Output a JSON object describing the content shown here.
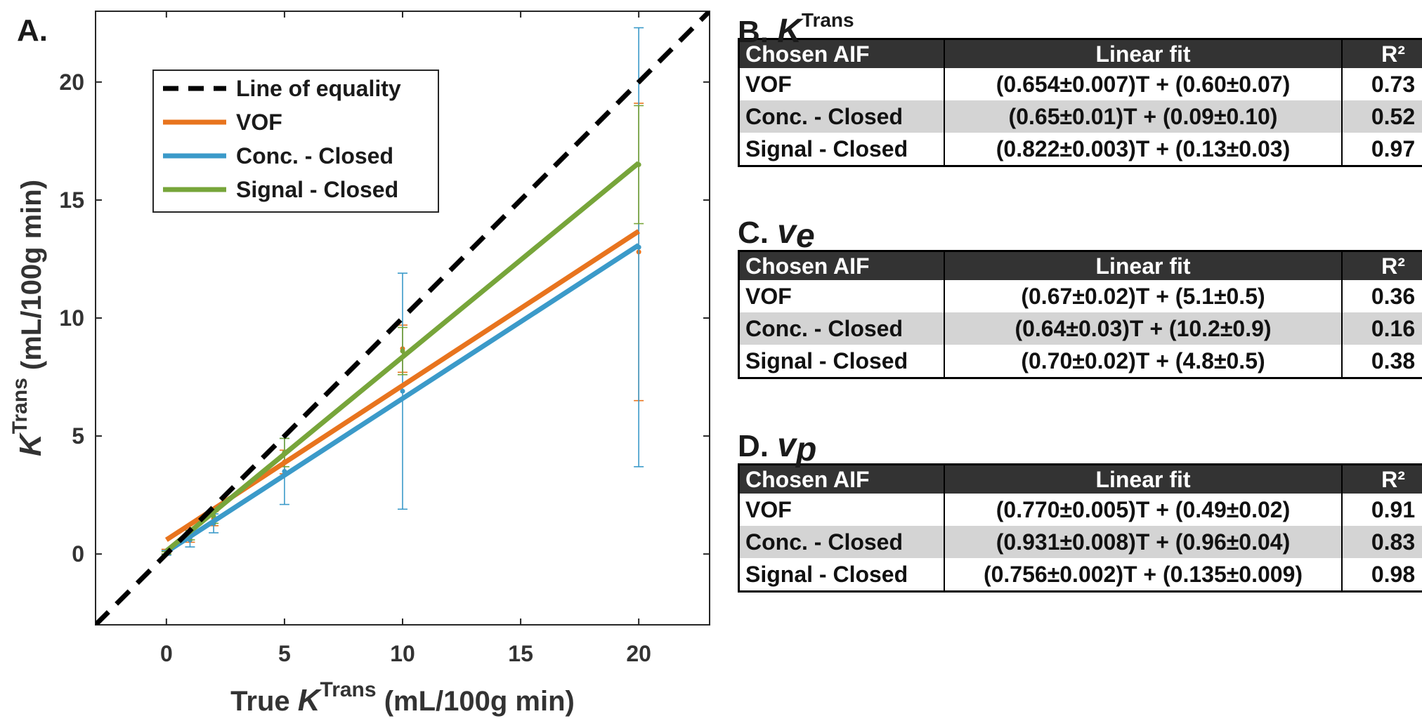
{
  "panel_a": {
    "label": "A."
  },
  "chart_data": {
    "type": "line",
    "panel": "A.",
    "xlabel": "True K^Trans (mL/100g min)",
    "ylabel": "K^Trans (mL/100g min)",
    "xlabel_parts": {
      "pre": "True ",
      "sym": "K",
      "sup": "Trans",
      "post": " (mL/100g min)"
    },
    "ylabel_parts": {
      "sym": "K",
      "sup": "Trans",
      "post": " (mL/100g min)"
    },
    "xlim": [
      -3,
      23
    ],
    "ylim": [
      -3,
      23
    ],
    "xticks": [
      0,
      5,
      10,
      15,
      20
    ],
    "yticks": [
      0,
      5,
      10,
      15,
      20
    ],
    "grid": false,
    "legend_position": "top-left",
    "reference_line": {
      "name": "Line of equality",
      "style": "dashed",
      "color": "#000000"
    },
    "series": [
      {
        "name": "VOF",
        "color": "#e8741e",
        "fit": {
          "slope": 0.654,
          "intercept": 0.6
        },
        "x": [
          0,
          1,
          2,
          5,
          10,
          20
        ],
        "y": [
          0.1,
          0.7,
          1.5,
          3.9,
          8.7,
          12.8
        ],
        "err": [
          0.1,
          0.2,
          0.3,
          0.5,
          1.0,
          6.3
        ]
      },
      {
        "name": "Conc. - Closed",
        "color": "#3b9ac9",
        "fit": {
          "slope": 0.65,
          "intercept": 0.09
        },
        "x": [
          0,
          1,
          2,
          5,
          10,
          20
        ],
        "y": [
          0.05,
          0.6,
          1.3,
          3.5,
          6.9,
          13.0
        ],
        "err": [
          0.1,
          0.3,
          0.4,
          1.4,
          5.0,
          9.3
        ]
      },
      {
        "name": "Signal - Closed",
        "color": "#77a53a",
        "fit": {
          "slope": 0.822,
          "intercept": 0.13
        },
        "x": [
          0,
          1,
          2,
          5,
          10,
          20
        ],
        "y": [
          0.05,
          0.8,
          1.6,
          4.3,
          8.6,
          16.5
        ],
        "err": [
          0.05,
          0.2,
          0.3,
          0.6,
          1.0,
          2.5
        ]
      }
    ]
  },
  "tables": [
    {
      "label": "B.",
      "symbol": "K",
      "superscript": "Trans",
      "subscript": "",
      "headers": [
        "Chosen AIF",
        "Linear fit",
        "R²"
      ],
      "rows": [
        {
          "aif": "VOF",
          "fit": "(0.654±0.007)T + (0.60±0.07)",
          "r2": "0.73"
        },
        {
          "aif": "Conc. - Closed",
          "fit": "(0.65±0.01)T + (0.09±0.10)",
          "r2": "0.52"
        },
        {
          "aif": "Signal - Closed",
          "fit": "(0.822±0.003)T + (0.13±0.03)",
          "r2": "0.97"
        }
      ]
    },
    {
      "label": "C.",
      "symbol": "v",
      "superscript": "",
      "subscript": "e",
      "headers": [
        "Chosen AIF",
        "Linear fit",
        "R²"
      ],
      "rows": [
        {
          "aif": "VOF",
          "fit": "(0.67±0.02)T + (5.1±0.5)",
          "r2": "0.36"
        },
        {
          "aif": "Conc. - Closed",
          "fit": "(0.64±0.03)T + (10.2±0.9)",
          "r2": "0.16"
        },
        {
          "aif": "Signal - Closed",
          "fit": "(0.70±0.02)T + (4.8±0.5)",
          "r2": "0.38"
        }
      ]
    },
    {
      "label": "D.",
      "symbol": "v",
      "superscript": "",
      "subscript": "p",
      "headers": [
        "Chosen AIF",
        "Linear fit",
        "R²"
      ],
      "rows": [
        {
          "aif": "VOF",
          "fit": "(0.770±0.005)T + (0.49±0.02)",
          "r2": "0.91"
        },
        {
          "aif": "Conc. - Closed",
          "fit": "(0.931±0.008)T + (0.96±0.04)",
          "r2": "0.83"
        },
        {
          "aif": "Signal - Closed",
          "fit": "(0.756±0.002)T + (0.135±0.009)",
          "r2": "0.98"
        }
      ]
    }
  ]
}
